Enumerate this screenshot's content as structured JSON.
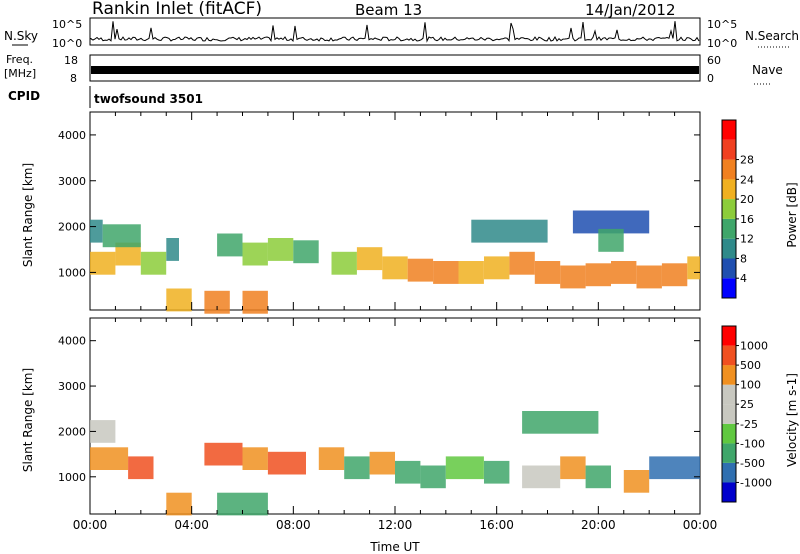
{
  "header": {
    "station": "Rankin Inlet (fitACF)",
    "beam": "Beam 13",
    "date": "14/Jan/2012"
  },
  "summary_panels": {
    "nsky_label": "N.Sky",
    "nsky_ticks": [
      "10^5",
      "10^0"
    ],
    "nsearch_label": "N.Search",
    "nsearch_ticks": [
      "10^5",
      "10^0"
    ],
    "freq_label": "Freq.",
    "freq_unit": "[MHz]",
    "freq_ticks": [
      "18",
      "8"
    ],
    "nave_label": "Nave",
    "nave_ticks": [
      "60",
      "0"
    ],
    "cpid_label": "CPID",
    "cpid_value": "twofsound 3501"
  },
  "colors": {
    "power_scale": [
      "#0000ff",
      "#1f4fb0",
      "#2f8a8a",
      "#3fa66a",
      "#8ccc3a",
      "#f0b020",
      "#f08020",
      "#f04020",
      "#ff0000"
    ],
    "velocity_scale": [
      "#ff0000",
      "#f05020",
      "#f09020",
      "#c8c8c0",
      "#c8c8c0",
      "#60c840",
      "#3fa66a",
      "#2f6fb0",
      "#0000cc"
    ]
  },
  "chart_data": [
    {
      "type": "heatmap",
      "name": "power",
      "ylabel": "Slant Range [km]",
      "ylim": [
        180,
        4500
      ],
      "y_ticks": [
        "1000",
        "2000",
        "3000",
        "4000"
      ],
      "colorbar_label": "Power [dB]",
      "colorbar_ticks": [
        "4",
        "8",
        "12",
        "16",
        "20",
        "24",
        "28"
      ],
      "cells": [
        [
          0,
          1,
          1200,
          22
        ],
        [
          1,
          1,
          1400,
          24
        ],
        [
          2,
          1,
          1200,
          20
        ],
        [
          3,
          0.5,
          1500,
          12
        ],
        [
          0,
          0.5,
          1900,
          10
        ],
        [
          0.5,
          1.5,
          1800,
          14
        ],
        [
          5,
          1,
          1600,
          16
        ],
        [
          6,
          1,
          1400,
          20
        ],
        [
          7,
          1,
          1500,
          18
        ],
        [
          8,
          1,
          1450,
          16
        ],
        [
          9.5,
          1,
          1200,
          20
        ],
        [
          10.5,
          1,
          1300,
          22
        ],
        [
          11.5,
          1,
          1100,
          24
        ],
        [
          12.5,
          1,
          1050,
          26
        ],
        [
          13.5,
          1,
          1000,
          26
        ],
        [
          14.5,
          1,
          1000,
          22
        ],
        [
          15.5,
          1,
          1100,
          24
        ],
        [
          16.5,
          1,
          1200,
          26
        ],
        [
          17.5,
          1,
          1000,
          28
        ],
        [
          18.5,
          1,
          900,
          28
        ],
        [
          19.5,
          1,
          950,
          26
        ],
        [
          20.5,
          1,
          1000,
          26
        ],
        [
          21.5,
          1,
          900,
          28
        ],
        [
          22.5,
          1,
          950,
          26
        ],
        [
          23.5,
          0.5,
          1100,
          24
        ],
        [
          4.5,
          1,
          350,
          28
        ],
        [
          6,
          1,
          350,
          26
        ],
        [
          3,
          1,
          400,
          22
        ],
        [
          15,
          3,
          1900,
          10
        ],
        [
          19,
          3,
          2100,
          8
        ],
        [
          20,
          1,
          1700,
          14
        ]
      ]
    },
    {
      "type": "heatmap",
      "name": "velocity",
      "ylabel": "Slant Range [km]",
      "xlabel": "Time UT",
      "ylim": [
        180,
        4500
      ],
      "y_ticks": [
        "1000",
        "2000",
        "3000",
        "4000"
      ],
      "x_ticks": [
        "00:00",
        "04:00",
        "08:00",
        "12:00",
        "16:00",
        "20:00",
        "00:00"
      ],
      "colorbar_label": "Velocity [m s-1]",
      "colorbar_ticks": [
        "1000",
        "500",
        "100",
        "25",
        "-25",
        "-100",
        "-500",
        "-1000"
      ],
      "cells": [
        [
          0,
          1.5,
          1400,
          100
        ],
        [
          1.5,
          1,
          1200,
          500
        ],
        [
          0,
          1,
          2000,
          25
        ],
        [
          4.5,
          1.5,
          1500,
          500
        ],
        [
          6,
          1,
          1400,
          100
        ],
        [
          7,
          1.5,
          1300,
          500
        ],
        [
          9,
          1,
          1400,
          100
        ],
        [
          10,
          1,
          1200,
          -100
        ],
        [
          11,
          1,
          1300,
          100
        ],
        [
          12,
          1,
          1100,
          -100
        ],
        [
          13,
          1,
          1000,
          -100
        ],
        [
          14,
          1.5,
          1200,
          -25
        ],
        [
          15.5,
          1,
          1100,
          -100
        ],
        [
          17,
          1.5,
          1000,
          25
        ],
        [
          18.5,
          1,
          1200,
          100
        ],
        [
          19.5,
          1,
          1000,
          -100
        ],
        [
          21,
          1,
          900,
          100
        ],
        [
          22,
          2,
          1200,
          -500
        ],
        [
          17,
          3,
          2200,
          -100
        ],
        [
          3,
          1,
          400,
          100
        ],
        [
          5,
          2,
          400,
          -100
        ]
      ]
    }
  ]
}
